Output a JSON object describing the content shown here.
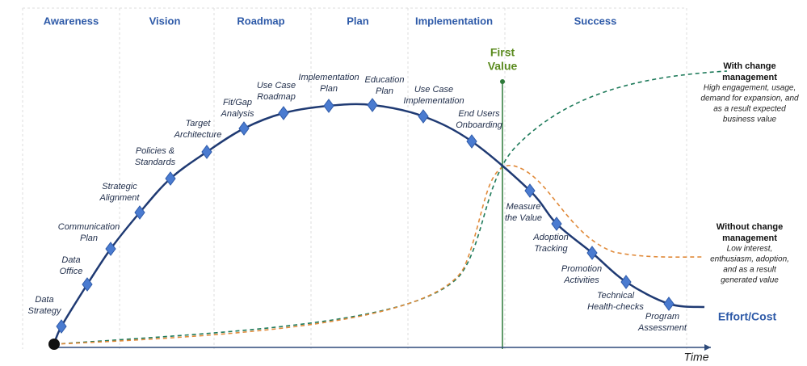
{
  "phases": [
    "Awareness",
    "Vision",
    "Roadmap",
    "Plan",
    "Implementation",
    "Success"
  ],
  "milestones": [
    [
      "Data",
      "Strategy"
    ],
    [
      "Data",
      "Office"
    ],
    [
      "Communication",
      "Plan"
    ],
    [
      "Strategic",
      "Alignment"
    ],
    [
      "Policies &",
      "Standards"
    ],
    [
      "Target",
      "Architecture"
    ],
    [
      "Fit/Gap",
      "Analysis"
    ],
    [
      "Use Case",
      "Roadmap"
    ],
    [
      "Implementation",
      "Plan"
    ],
    [
      "Education",
      "Plan"
    ],
    [
      "Use Case",
      "Implementation"
    ],
    [
      "End Users",
      "Onboarding"
    ],
    [
      "Measure",
      "the Value"
    ],
    [
      "Adoption",
      "Tracking"
    ],
    [
      "Promotion",
      "Activities"
    ],
    [
      "Technical",
      "Health-checks"
    ],
    [
      "Program",
      "Assessment"
    ]
  ],
  "first_value": [
    "First",
    "Value"
  ],
  "with_change": {
    "title": [
      "With change",
      "management"
    ],
    "description": [
      "High engagement, usage,",
      "demand for expansion, and",
      "as a result expected",
      "business value"
    ]
  },
  "without_change": {
    "title": [
      "Without change",
      "management"
    ],
    "description": [
      "Low interest,",
      "enthusiasm, adoption,",
      "and as a result",
      "generated value"
    ]
  },
  "effort_label": "Effort/Cost",
  "time_label": "Time"
}
